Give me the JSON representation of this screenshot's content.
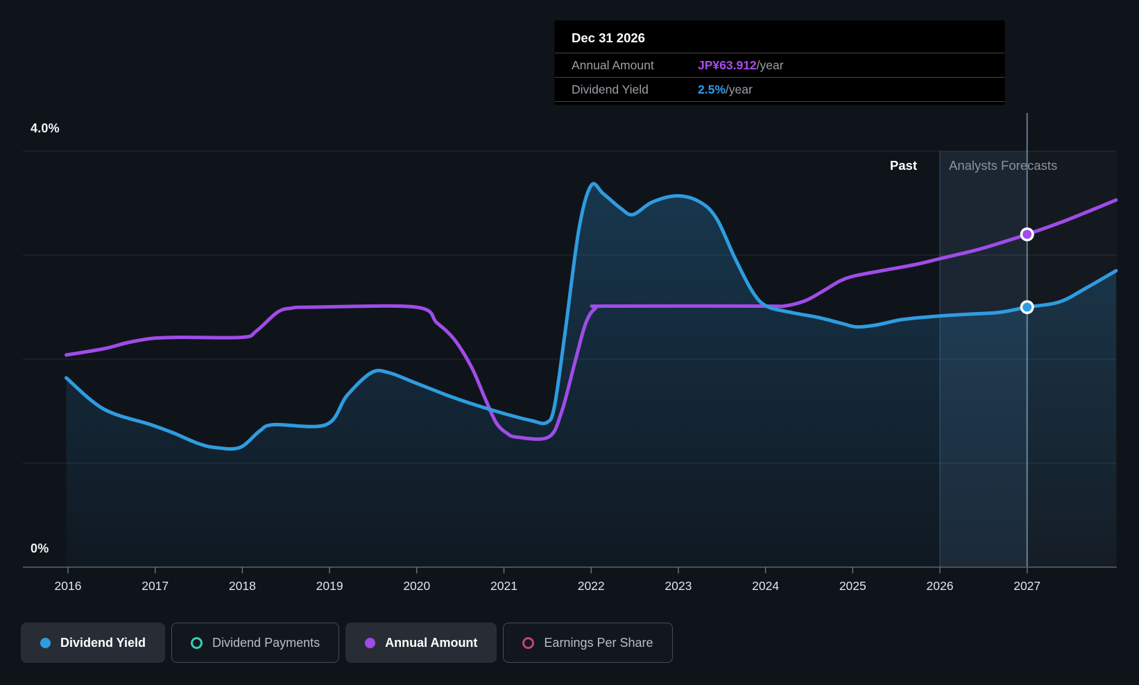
{
  "colors": {
    "background": "#0f141b",
    "blue": "#2f9ce0",
    "purple": "#a04ce8",
    "teal": "#38cfb7",
    "pink": "#c04578",
    "grid": "rgba(255,255,255,0.10)",
    "axis_line": "#4b5158",
    "tick_label": "#e2e6ea",
    "tooltip_value_purple": "#ab4bf0",
    "tooltip_value_blue": "#2d9cf0",
    "crosshair": "rgba(175,208,235,0.55)",
    "forecast_band": "rgba(96,160,215,0.10)",
    "forecast_region": "rgba(255,255,255,0.025)"
  },
  "tooltip": {
    "title": "Dec 31 2026",
    "rows": [
      {
        "label": "Annual Amount",
        "value": "JP¥63.912",
        "suffix": "/year",
        "value_color": "#ab4bf0"
      },
      {
        "label": "Dividend Yield",
        "value": "2.5%",
        "suffix": "/year",
        "value_color": "#2d9cf0"
      }
    ]
  },
  "annotations": {
    "past": "Past",
    "forecasts": "Analysts Forecasts"
  },
  "y_axis": {
    "top_label": "4.0%",
    "bottom_label": "0%"
  },
  "x_axis": {
    "years": [
      "2016",
      "2017",
      "2018",
      "2019",
      "2020",
      "2021",
      "2022",
      "2023",
      "2024",
      "2025",
      "2026",
      "2027"
    ]
  },
  "legend": [
    {
      "label": "Dividend Yield",
      "marker": "dot",
      "style": "filled",
      "color": "#2f9ce0"
    },
    {
      "label": "Dividend Payments",
      "marker": "ring",
      "style": "outline",
      "color": "#38cfb7"
    },
    {
      "label": "Annual Amount",
      "marker": "dot",
      "style": "filled",
      "color": "#a04ce8"
    },
    {
      "label": "Earnings Per Share",
      "marker": "ring",
      "style": "outline",
      "color": "#c04578"
    }
  ],
  "chart_data": {
    "type": "line",
    "title": "Dividend Yield and Annual Amount, past and analysts forecasts",
    "x_range": [
      2015.98,
      2028.02
    ],
    "ylim_pct": [
      0,
      4
    ],
    "gridlines_pct": [
      1,
      2,
      3,
      4
    ],
    "grid": true,
    "legend_position": "bottom",
    "forecast_start_year": 2026,
    "hover_year": 2027,
    "hover_values": {
      "annual_amount": "JP¥63.912/year",
      "dividend_yield": "2.5%/year"
    },
    "series": [
      {
        "name": "Dividend Yield",
        "color": "#2f9ce0",
        "unit": "percent",
        "area_fill": true,
        "points": [
          [
            2015.98,
            1.82
          ],
          [
            2016.41,
            1.52
          ],
          [
            2016.95,
            1.37
          ],
          [
            2017.21,
            1.29
          ],
          [
            2017.49,
            1.19
          ],
          [
            2017.69,
            1.15
          ],
          [
            2017.97,
            1.15
          ],
          [
            2018.2,
            1.31
          ],
          [
            2018.36,
            1.37
          ],
          [
            2018.96,
            1.37
          ],
          [
            2019.2,
            1.65
          ],
          [
            2019.48,
            1.87
          ],
          [
            2019.68,
            1.87
          ],
          [
            2019.99,
            1.77
          ],
          [
            2020.39,
            1.64
          ],
          [
            2020.71,
            1.55
          ],
          [
            2021.03,
            1.47
          ],
          [
            2021.31,
            1.41
          ],
          [
            2021.49,
            1.39
          ],
          [
            2021.58,
            1.55
          ],
          [
            2021.7,
            2.25
          ],
          [
            2021.86,
            3.25
          ],
          [
            2022.0,
            3.67
          ],
          [
            2022.14,
            3.59
          ],
          [
            2022.34,
            3.45
          ],
          [
            2022.48,
            3.39
          ],
          [
            2022.7,
            3.51
          ],
          [
            2022.99,
            3.57
          ],
          [
            2023.25,
            3.51
          ],
          [
            2023.44,
            3.35
          ],
          [
            2023.65,
            2.97
          ],
          [
            2023.85,
            2.65
          ],
          [
            2024.01,
            2.51
          ],
          [
            2024.29,
            2.45
          ],
          [
            2024.61,
            2.4
          ],
          [
            2024.89,
            2.34
          ],
          [
            2025.05,
            2.31
          ],
          [
            2025.28,
            2.33
          ],
          [
            2025.56,
            2.38
          ],
          [
            2025.92,
            2.41
          ],
          [
            2026.28,
            2.43
          ],
          [
            2026.68,
            2.45
          ],
          [
            2027.0,
            2.5
          ],
          [
            2027.37,
            2.55
          ],
          [
            2027.69,
            2.69
          ],
          [
            2028.02,
            2.85
          ]
        ]
      },
      {
        "name": "Annual Amount",
        "color": "#a04ce8",
        "unit": "JPY per share (right axis not labeled; values plotted on yield-axis scale)",
        "area_fill": false,
        "points": [
          [
            2015.98,
            2.04
          ],
          [
            2016.41,
            2.1
          ],
          [
            2016.69,
            2.16
          ],
          [
            2016.97,
            2.2
          ],
          [
            2017.29,
            2.21
          ],
          [
            2018.0,
            2.21
          ],
          [
            2018.16,
            2.27
          ],
          [
            2018.4,
            2.45
          ],
          [
            2018.56,
            2.49
          ],
          [
            2018.8,
            2.5
          ],
          [
            2019.99,
            2.5
          ],
          [
            2020.23,
            2.35
          ],
          [
            2020.43,
            2.19
          ],
          [
            2020.63,
            1.92
          ],
          [
            2020.79,
            1.61
          ],
          [
            2020.91,
            1.39
          ],
          [
            2021.03,
            1.29
          ],
          [
            2021.15,
            1.25
          ],
          [
            2021.51,
            1.25
          ],
          [
            2021.66,
            1.49
          ],
          [
            2021.82,
            1.99
          ],
          [
            2021.94,
            2.35
          ],
          [
            2022.05,
            2.49
          ],
          [
            2022.18,
            2.51
          ],
          [
            2023.97,
            2.51
          ],
          [
            2024.21,
            2.51
          ],
          [
            2024.45,
            2.56
          ],
          [
            2024.65,
            2.65
          ],
          [
            2024.85,
            2.75
          ],
          [
            2025.02,
            2.8
          ],
          [
            2025.33,
            2.85
          ],
          [
            2025.72,
            2.91
          ],
          [
            2026.02,
            2.97
          ],
          [
            2026.42,
            3.05
          ],
          [
            2026.74,
            3.13
          ],
          [
            2027.0,
            3.2
          ],
          [
            2027.37,
            3.31
          ],
          [
            2027.73,
            3.43
          ],
          [
            2028.02,
            3.53
          ]
        ]
      }
    ],
    "markers": [
      {
        "series": "Annual Amount",
        "year": 2027,
        "value_plot_pct": 3.2,
        "color": "#a04ce8"
      },
      {
        "series": "Dividend Yield",
        "year": 2027,
        "value_plot_pct": 2.5,
        "color": "#2f9ce0"
      }
    ]
  }
}
